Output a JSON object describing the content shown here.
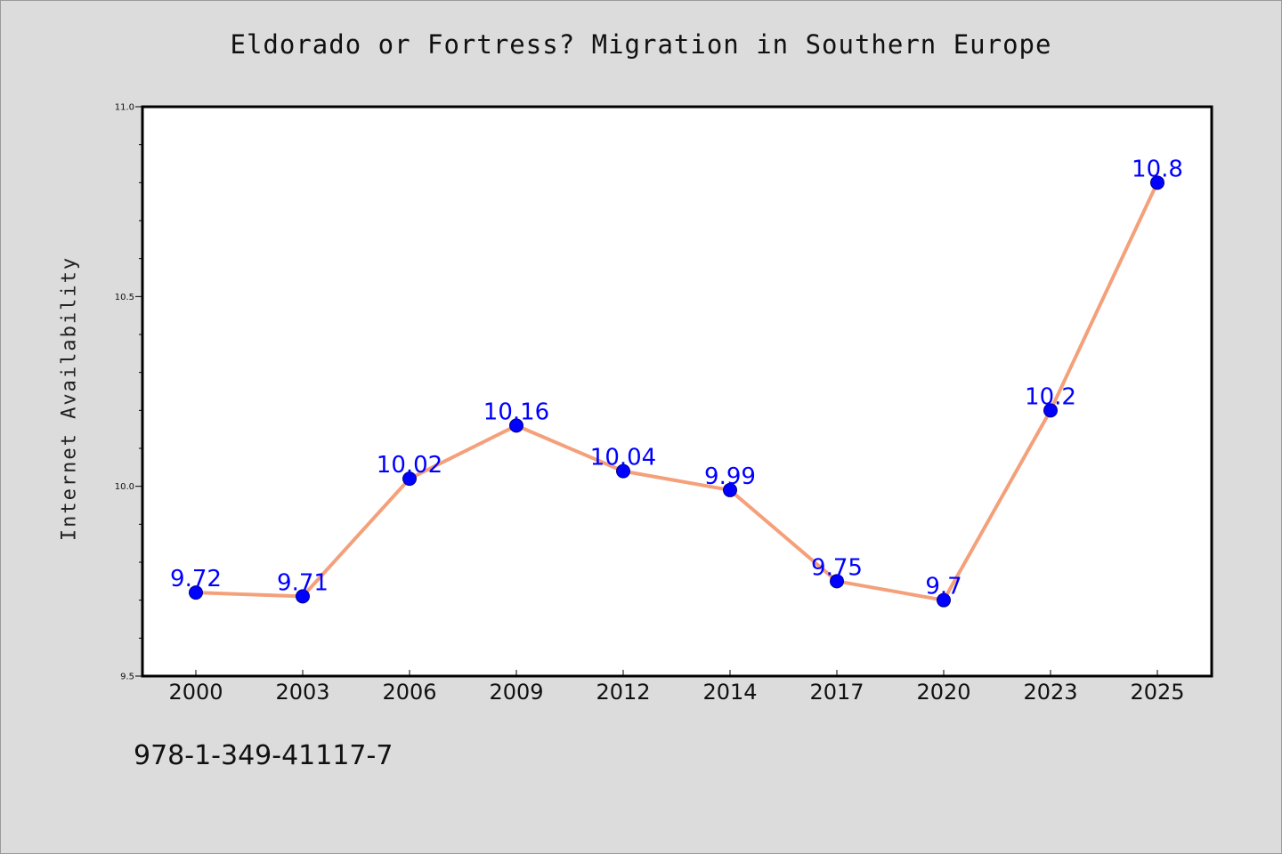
{
  "chart_data": {
    "type": "line",
    "title": "Eldorado or Fortress? Migration in Southern Europe",
    "xlabel": "",
    "ylabel": "Internet Availability",
    "categories": [
      "2000",
      "2003",
      "2006",
      "2009",
      "2012",
      "2014",
      "2017",
      "2020",
      "2023",
      "2025"
    ],
    "series": [
      {
        "values": [
          9.72,
          9.71,
          10.02,
          10.16,
          10.04,
          9.99,
          9.75,
          9.7,
          10.2,
          10.8
        ],
        "data_labels": [
          "9.72",
          "9.71",
          "10.02",
          "10.16",
          "10.04",
          "9.99",
          "9.75",
          "9.7",
          "10.2",
          "10.8"
        ]
      }
    ],
    "ylim": [
      9.5,
      11.0
    ],
    "y_ticks": [
      "9.5",
      "10.0",
      "10.5",
      "11.0"
    ],
    "grid": false,
    "line_color": "#f4a07a",
    "marker_color": "#0000ff",
    "label_color": "#0000ff"
  },
  "footer": {
    "isbn": "978-1-349-41117-7"
  }
}
